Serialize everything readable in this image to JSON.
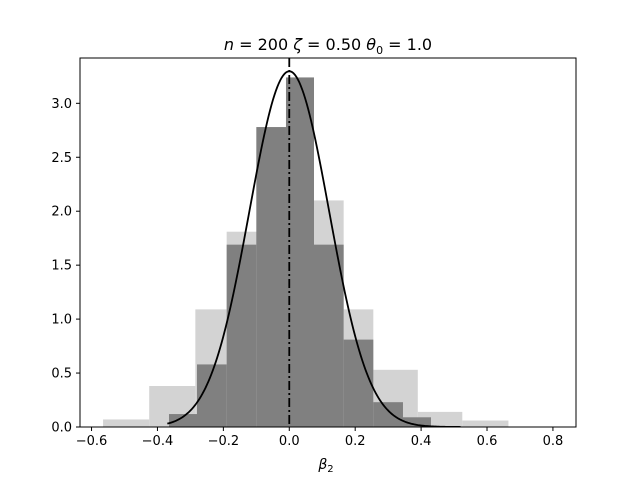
{
  "chart_data": {
    "type": "bar",
    "title_parts": {
      "n_label": "n",
      "n_value": "200",
      "zeta_label": "ζ",
      "zeta_value": "0.50",
      "theta_label": "θ",
      "theta_sub": "0",
      "theta_value": "1.0"
    },
    "xlabel_main": "β",
    "xlabel_sub": "2",
    "ylabel": "",
    "xlim": [
      -0.635,
      0.87
    ],
    "ylim": [
      0,
      3.42
    ],
    "xticks": [
      -0.6,
      -0.4,
      -0.2,
      0.0,
      0.2,
      0.4,
      0.6,
      0.8
    ],
    "xtick_labels": [
      "−0.6",
      "−0.4",
      "−0.2",
      "0.0",
      "0.2",
      "0.4",
      "0.6",
      "0.8"
    ],
    "yticks": [
      0.0,
      0.5,
      1.0,
      1.5,
      2.0,
      2.5,
      3.0
    ],
    "ytick_labels": [
      "0.0",
      "0.5",
      "1.0",
      "1.5",
      "2.0",
      "2.5",
      "3.0"
    ],
    "grid": false,
    "colors": {
      "light_hist": "#d3d3d3",
      "dark_hist": "#808080",
      "curve": "#000000",
      "vline": "#000000"
    },
    "series": [
      {
        "kind": "histogram",
        "style": "light",
        "bins": [
          {
            "x0": -0.565,
            "x1": -0.425,
            "y": 0.07
          },
          {
            "x0": -0.425,
            "x1": -0.285,
            "y": 0.38
          },
          {
            "x0": -0.285,
            "x1": -0.19,
            "y": 1.09
          },
          {
            "x0": -0.19,
            "x1": -0.095,
            "y": 1.81
          },
          {
            "x0": -0.095,
            "x1": 0.0,
            "y": 2.69
          },
          {
            "x0": 0.0,
            "x1": 0.075,
            "y": 3.2
          },
          {
            "x0": 0.075,
            "x1": 0.165,
            "y": 2.1
          },
          {
            "x0": 0.165,
            "x1": 0.255,
            "y": 1.09
          },
          {
            "x0": 0.255,
            "x1": 0.39,
            "y": 0.53
          },
          {
            "x0": 0.39,
            "x1": 0.525,
            "y": 0.14
          },
          {
            "x0": 0.525,
            "x1": 0.665,
            "y": 0.06
          }
        ]
      },
      {
        "kind": "histogram",
        "style": "dark",
        "bins": [
          {
            "x0": -0.365,
            "x1": -0.28,
            "y": 0.12
          },
          {
            "x0": -0.28,
            "x1": -0.19,
            "y": 0.58
          },
          {
            "x0": -0.19,
            "x1": -0.1,
            "y": 1.69
          },
          {
            "x0": -0.1,
            "x1": -0.01,
            "y": 2.78
          },
          {
            "x0": -0.01,
            "x1": 0.075,
            "y": 3.24
          },
          {
            "x0": 0.075,
            "x1": 0.165,
            "y": 1.69
          },
          {
            "x0": 0.165,
            "x1": 0.255,
            "y": 0.81
          },
          {
            "x0": 0.255,
            "x1": 0.345,
            "y": 0.23
          },
          {
            "x0": 0.345,
            "x1": 0.43,
            "y": 0.09
          }
        ]
      },
      {
        "kind": "density-curve",
        "mean": 0.0,
        "sd": 0.121,
        "x_range": [
          -0.37,
          0.52
        ]
      },
      {
        "kind": "vertical-line",
        "x": 0.0,
        "style": "dash-dot"
      }
    ]
  }
}
